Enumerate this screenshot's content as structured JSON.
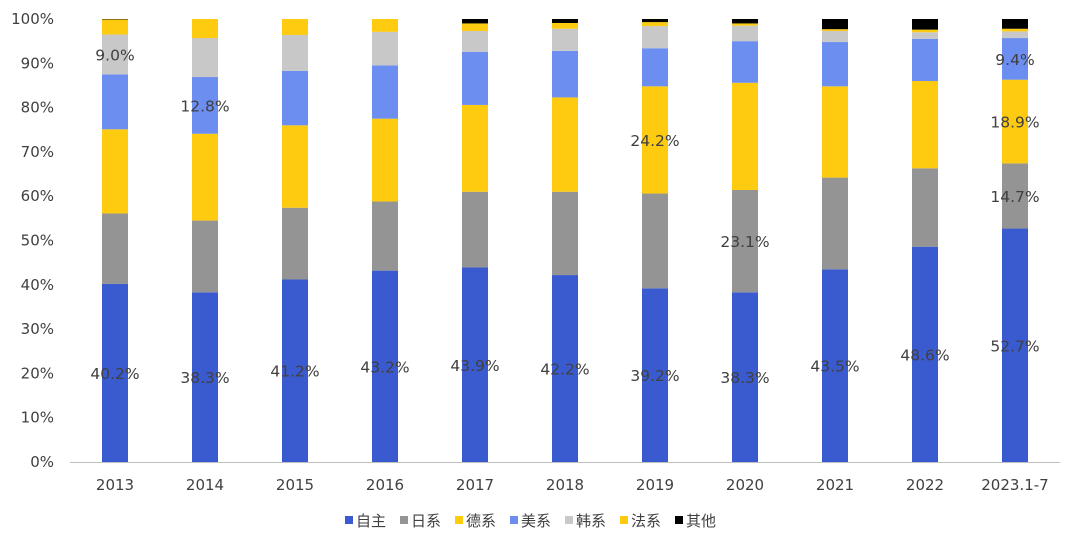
{
  "chart_data": {
    "type": "bar",
    "stacked": true,
    "title": "",
    "xlabel": "",
    "ylabel": "",
    "ylim": [
      0,
      100
    ],
    "yticks": [
      "0%",
      "10%",
      "20%",
      "30%",
      "40%",
      "50%",
      "60%",
      "70%",
      "80%",
      "90%",
      "100%"
    ],
    "grid": false,
    "legend_position": "bottom",
    "categories": [
      "2013",
      "2014",
      "2015",
      "2016",
      "2017",
      "2018",
      "2019",
      "2020",
      "2021",
      "2022",
      "2023.1-7"
    ],
    "series": [
      {
        "name": "自主",
        "color": "#3a5bd0",
        "values": [
          40.2,
          38.3,
          41.2,
          43.2,
          43.9,
          42.2,
          39.2,
          38.3,
          43.5,
          48.6,
          52.7
        ],
        "labels": [
          "40.2%",
          "38.3%",
          "41.2%",
          "43.2%",
          "43.9%",
          "42.2%",
          "39.2%",
          "38.3%",
          "43.5%",
          "48.6%",
          "52.7%"
        ]
      },
      {
        "name": "日系",
        "color": "#949494",
        "values": [
          15.9,
          16.2,
          16.2,
          15.6,
          17.1,
          18.8,
          21.4,
          23.1,
          20.7,
          17.7,
          14.7
        ],
        "labels": [
          "",
          "",
          "",
          "",
          "",
          "",
          "",
          "23.1%",
          "",
          "",
          "14.7%"
        ]
      },
      {
        "name": "德系",
        "color": "#fecb10",
        "values": [
          19.0,
          19.6,
          18.6,
          18.7,
          19.6,
          21.3,
          24.2,
          24.2,
          20.6,
          19.7,
          18.9
        ],
        "labels": [
          "",
          "",
          "",
          "",
          "",
          "",
          "24.2%",
          "",
          "",
          "",
          "18.9%"
        ]
      },
      {
        "name": "美系",
        "color": "#6b8ef0",
        "values": [
          12.4,
          12.8,
          12.3,
          12.0,
          12.0,
          10.5,
          8.6,
          9.4,
          10.0,
          9.5,
          9.4
        ],
        "labels": [
          "",
          "12.8%",
          "",
          "",
          "",
          "",
          "",
          "",
          "",
          "",
          "9.4%"
        ]
      },
      {
        "name": "韩系",
        "color": "#c8c8c8",
        "values": [
          9.0,
          8.8,
          8.1,
          7.6,
          4.7,
          5.0,
          5.0,
          3.5,
          2.5,
          1.5,
          1.5
        ],
        "labels": [
          "9.0%",
          "",
          "",
          "",
          "",
          "",
          "",
          "",
          "",
          "",
          ""
        ]
      },
      {
        "name": "法系",
        "color": "#fecb10",
        "values": [
          3.4,
          4.3,
          3.6,
          2.9,
          1.7,
          1.3,
          0.9,
          0.5,
          0.4,
          0.6,
          0.6
        ],
        "labels": [
          "",
          "",
          "",
          "",
          "",
          "",
          "",
          "",
          "",
          "",
          ""
        ]
      },
      {
        "name": "其他",
        "color": "#000000",
        "values": [
          0.1,
          0.0,
          0.0,
          0.0,
          1.0,
          0.9,
          0.7,
          1.0,
          2.3,
          2.4,
          2.2
        ],
        "labels": [
          "",
          "",
          "",
          "",
          "",
          "",
          "",
          "",
          "",
          "",
          ""
        ]
      }
    ]
  }
}
